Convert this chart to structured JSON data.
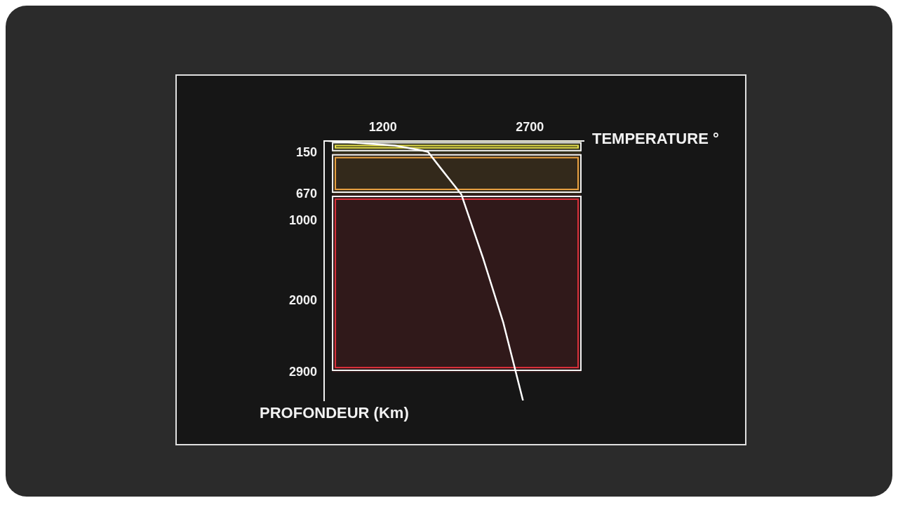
{
  "chart_data": {
    "type": "line",
    "xlabel": "TEMPERATURE °",
    "ylabel": "PROFONDEUR (Km)",
    "xlim": [
      600,
      3250
    ],
    "xticks": [
      1200,
      2700
    ],
    "ylim": [
      3250,
      0
    ],
    "yticks": [
      150,
      670,
      1000,
      2000,
      2900
    ],
    "series": [
      {
        "color": "#ffffff",
        "x": [
          600,
          970,
          1320,
          1590,
          1660,
          1800,
          2000,
          2220,
          2430,
          2630
        ],
        "values": [
          0,
          30,
          60,
          120,
          140,
          360,
          670,
          1460,
          2280,
          3250
        ]
      }
    ],
    "bands": [
      {
        "axis": "y",
        "from": 0,
        "to": 150,
        "color": "#e6e04a"
      },
      {
        "axis": "y",
        "from": 150,
        "to": 670,
        "color": "#e8a040"
      },
      {
        "axis": "y",
        "from": 670,
        "to": 2900,
        "color": "#d8303a"
      }
    ],
    "grid": false,
    "legend": false,
    "marker": "none",
    "line_style": "solid"
  }
}
